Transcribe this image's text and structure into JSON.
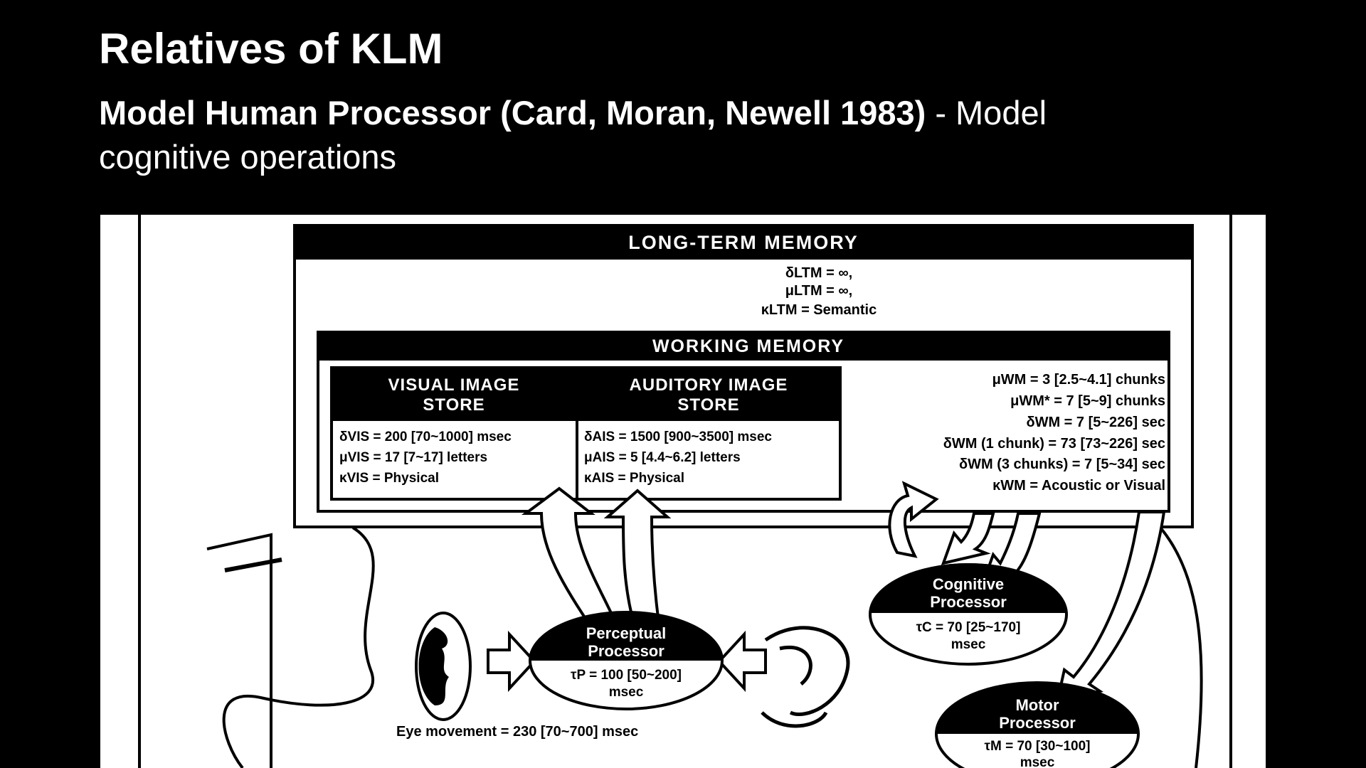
{
  "slide": {
    "title": "Relatives of KLM",
    "subtitle_bold": "Model Human Processor (Card, Moran, Newell 1983)",
    "subtitle_rest": " - Model cognitive operations"
  },
  "diagram": {
    "ltm": {
      "title": "LONG-TERM MEMORY",
      "lines": [
        "δLTM = ∞,",
        "μLTM = ∞,",
        "κLTM = Semantic"
      ]
    },
    "wm": {
      "title": "WORKING MEMORY",
      "params": [
        "μWM = 3 [2.5~4.1] chunks",
        "μWM* = 7 [5~9] chunks",
        "δWM = 7 [5~226] sec",
        "δWM (1 chunk) = 73 [73~226] sec",
        "δWM (3 chunks) = 7 [5~34] sec",
        "κWM = Acoustic or Visual"
      ]
    },
    "vis": {
      "title1": "VISUAL IMAGE",
      "title2": "STORE",
      "lines": [
        "δVIS = 200 [70~1000] msec",
        "μVIS = 17 [7~17] letters",
        "κVIS = Physical"
      ]
    },
    "ais": {
      "title1": "AUDITORY IMAGE",
      "title2": "STORE",
      "lines": [
        "δAIS = 1500 [900~3500] msec",
        "μAIS = 5 [4.4~6.2] letters",
        "κAIS = Physical"
      ]
    },
    "cognitive": {
      "name1": "Cognitive",
      "name2": "Processor",
      "param": "τC = 70 [25~170]",
      "unit": "msec"
    },
    "perceptual": {
      "name1": "Perceptual",
      "name2": "Processor",
      "param": "τP = 100 [50~200]",
      "unit": "msec"
    },
    "motor": {
      "name1": "Motor",
      "name2": "Processor",
      "param": "τM = 70 [30~100]",
      "unit": "msec"
    },
    "eye_movement": "Eye movement = 230 [70~700] msec"
  }
}
